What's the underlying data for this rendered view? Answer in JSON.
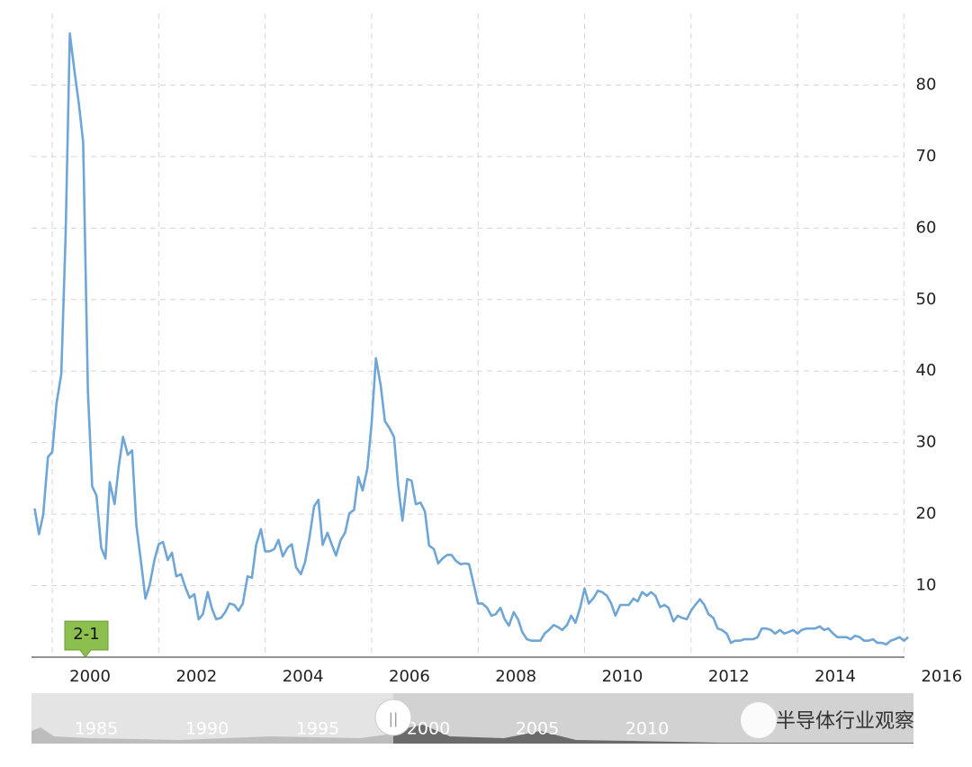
{
  "chart_data": {
    "type": "line",
    "annotation": "2-1",
    "watermark": "半导体行业观察",
    "navigator_labels": [
      1985,
      1990,
      1995,
      2000,
      2005,
      2010
    ],
    "xlim": [
      1999.61,
      2016.18
    ],
    "xticks": [
      2000,
      2002,
      2004,
      2006,
      2008,
      2010,
      2012,
      2014,
      2016
    ],
    "ylim": [
      0,
      90
    ],
    "yticks": [
      10,
      20,
      30,
      40,
      50,
      60,
      70,
      80
    ],
    "grid": true,
    "x": [
      1999.67,
      1999.75,
      1999.83,
      1999.92,
      2000.0,
      2000.08,
      2000.17,
      2000.25,
      2000.33,
      2000.42,
      2000.5,
      2000.58,
      2000.67,
      2000.75,
      2000.83,
      2000.92,
      2001.0,
      2001.08,
      2001.17,
      2001.25,
      2001.33,
      2001.42,
      2001.5,
      2001.58,
      2001.67,
      2001.75,
      2001.83,
      2001.92,
      2002.0,
      2002.08,
      2002.17,
      2002.25,
      2002.33,
      2002.42,
      2002.5,
      2002.58,
      2002.67,
      2002.75,
      2002.83,
      2002.92,
      2003.0,
      2003.08,
      2003.17,
      2003.25,
      2003.33,
      2003.42,
      2003.5,
      2003.58,
      2003.67,
      2003.75,
      2003.83,
      2003.92,
      2004.0,
      2004.08,
      2004.17,
      2004.25,
      2004.33,
      2004.42,
      2004.5,
      2004.58,
      2004.67,
      2004.75,
      2004.83,
      2004.92,
      2005.0,
      2005.08,
      2005.17,
      2005.25,
      2005.33,
      2005.42,
      2005.5,
      2005.58,
      2005.67,
      2005.75,
      2005.83,
      2005.92,
      2006.0,
      2006.08,
      2006.17,
      2006.25,
      2006.33,
      2006.42,
      2006.5,
      2006.58,
      2006.67,
      2006.75,
      2006.83,
      2006.92,
      2007.0,
      2007.08,
      2007.17,
      2007.25,
      2007.33,
      2007.42,
      2007.5,
      2007.58,
      2007.67,
      2007.75,
      2007.83,
      2007.92,
      2008.0,
      2008.08,
      2008.17,
      2008.25,
      2008.33,
      2008.42,
      2008.5,
      2008.58,
      2008.67,
      2008.75,
      2008.83,
      2008.92,
      2009.0,
      2009.08,
      2009.17,
      2009.25,
      2009.33,
      2009.42,
      2009.5,
      2009.58,
      2009.67,
      2009.75,
      2009.83,
      2009.92,
      2010.0,
      2010.08,
      2010.17,
      2010.25,
      2010.33,
      2010.42,
      2010.5,
      2010.58,
      2010.67,
      2010.75,
      2010.83,
      2010.92,
      2011.0,
      2011.08,
      2011.17,
      2011.25,
      2011.33,
      2011.42,
      2011.5,
      2011.58,
      2011.67,
      2011.75,
      2011.83,
      2011.92,
      2012.0,
      2012.08,
      2012.17,
      2012.25,
      2012.33,
      2012.42,
      2012.5,
      2012.58,
      2012.67,
      2012.75,
      2012.83,
      2012.92,
      2013.0,
      2013.08,
      2013.17,
      2013.25,
      2013.33,
      2013.42,
      2013.5,
      2013.58,
      2013.67,
      2013.75,
      2013.83,
      2013.92,
      2014.0,
      2014.08,
      2014.17,
      2014.25,
      2014.33,
      2014.42,
      2014.5,
      2014.58,
      2014.67,
      2014.75,
      2014.83,
      2014.92,
      2015.0,
      2015.08,
      2015.17,
      2015.25,
      2015.33,
      2015.42,
      2015.5,
      2015.58,
      2015.67,
      2015.75,
      2015.83,
      2015.92,
      2016.0,
      2016.08
    ],
    "series": [
      {
        "color": "#6fa6d6",
        "values": [
          20.8,
          17.2,
          19.9,
          28,
          28.7,
          35.5,
          39.6,
          59,
          87.2,
          81.8,
          77.4,
          72,
          37.1,
          23.9,
          22.6,
          15.3,
          13.8,
          24.5,
          21.4,
          26.7,
          30.8,
          28.3,
          28.9,
          18.5,
          13.2,
          8.2,
          10.1,
          13.6,
          15.8,
          16.1,
          13.6,
          14.6,
          11.3,
          11.6,
          9.8,
          8.3,
          8.8,
          5.3,
          6,
          9.1,
          6.8,
          5.3,
          5.5,
          6.3,
          7.5,
          7.3,
          6.5,
          7.5,
          11.3,
          11.1,
          15.7,
          17.9,
          14.8,
          14.8,
          15.1,
          16.4,
          14.1,
          15.3,
          15.8,
          12.6,
          11.6,
          13.3,
          16.6,
          21.1,
          22,
          15.7,
          17.4,
          15.8,
          14.2,
          16.4,
          17.4,
          20.1,
          20.6,
          25.2,
          23.3,
          26.4,
          32.7,
          41.8,
          38,
          33,
          32.1,
          30.8,
          23.9,
          19.1,
          24.9,
          24.7,
          21.4,
          21.6,
          20.4,
          15.6,
          15.1,
          13.1,
          13.8,
          14.3,
          14.3,
          13.5,
          13,
          13.1,
          13,
          10.1,
          7.5,
          7.5,
          6.9,
          5.8,
          6,
          6.9,
          5.3,
          4.4,
          6.3,
          5.3,
          3.5,
          2.5,
          2.3,
          2.3,
          2.3,
          3.3,
          3.8,
          4.5,
          4.2,
          3.8,
          4.5,
          5.8,
          4.8,
          7,
          9.6,
          7.5,
          8.3,
          9.3,
          9.1,
          8.6,
          7.5,
          5.8,
          7.3,
          7.3,
          7.3,
          8.2,
          7.8,
          9.1,
          8.6,
          9.1,
          8.6,
          7,
          7.3,
          6.9,
          5,
          5.8,
          5.5,
          5.3,
          6.5,
          7.3,
          8.1,
          7.3,
          6,
          5.5,
          4,
          3.8,
          3.3,
          2,
          2.3,
          2.3,
          2.5,
          2.5,
          2.5,
          2.8,
          4,
          4,
          3.8,
          3.3,
          3.8,
          3.3,
          3.5,
          3.8,
          3.3,
          3.8,
          4,
          4,
          4,
          4.3,
          3.8,
          4,
          3.3,
          2.8,
          2.8,
          2.8,
          2.5,
          3,
          2.8,
          2.3,
          2.3,
          2.5,
          2,
          2,
          1.8,
          2.3,
          2.5,
          2.8,
          2.3,
          2.8
        ]
      }
    ]
  }
}
